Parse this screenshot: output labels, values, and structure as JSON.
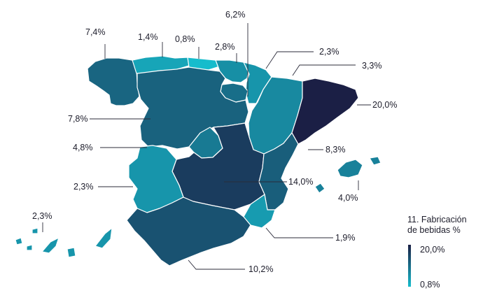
{
  "legend": {
    "title_line1": "11. Fabricación",
    "title_line2": "de bebidas %",
    "max_label": "20,0%",
    "min_label": "0,8%",
    "max_color": "#1b1f45",
    "min_color": "#16bccc"
  },
  "regions": [
    {
      "id": "galicia",
      "label": "7,4%",
      "value": 7.4
    },
    {
      "id": "asturias",
      "label": "1,4%",
      "value": 1.4
    },
    {
      "id": "cantabria",
      "label": "0,8%",
      "value": 0.8
    },
    {
      "id": "pais-vasco",
      "label": "2,8%",
      "value": 2.8
    },
    {
      "id": "la-rioja",
      "label": "6,2%",
      "value": 6.2
    },
    {
      "id": "navarra",
      "label": "2,3%",
      "value": 2.3
    },
    {
      "id": "aragon",
      "label": "3,3%",
      "value": 3.3
    },
    {
      "id": "cataluna",
      "label": "20,0%",
      "value": 20.0
    },
    {
      "id": "castilla-y-leon",
      "label": "7,8%",
      "value": 7.8
    },
    {
      "id": "madrid",
      "label": "4,8%",
      "value": 4.8
    },
    {
      "id": "comunidad-valenciana",
      "label": "8,3%",
      "value": 8.3
    },
    {
      "id": "castilla-la-mancha",
      "label": "14,0%",
      "value": 14.0
    },
    {
      "id": "baleares",
      "label": "4,0%",
      "value": 4.0
    },
    {
      "id": "extremadura",
      "label": "2,3%",
      "value": 2.3
    },
    {
      "id": "murcia",
      "label": "1,9%",
      "value": 1.9
    },
    {
      "id": "andalucia",
      "label": "10,2%",
      "value": 10.2
    },
    {
      "id": "canarias",
      "label": "2,3%",
      "value": 2.3
    }
  ]
}
